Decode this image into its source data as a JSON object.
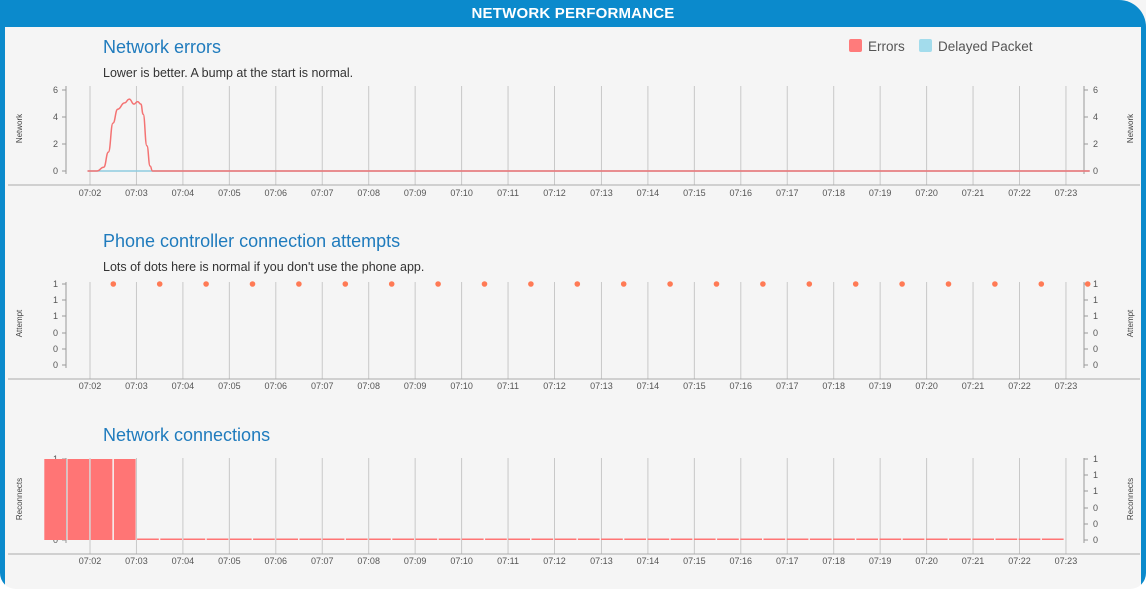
{
  "header": {
    "title": "NETWORK PERFORMANCE"
  },
  "legend": [
    {
      "label": "Errors",
      "color": "#ff7b7b"
    },
    {
      "label": "Delayed Packet",
      "color": "#a3dcec"
    }
  ],
  "colors": {
    "accent": "#0b8acc",
    "title": "#1f7bbd",
    "errors": "#f47373",
    "delayed": "#8fcbe0",
    "attempts": "#ff7a55",
    "reconnects": "#ff7575",
    "grid": "#c8c8c8"
  },
  "chart_data": [
    {
      "type": "line",
      "title": "Network errors",
      "subtitle": "Lower is better. A bump at the start is normal.",
      "ylabel_left": "Network",
      "ylabel_right": "Network",
      "x_ticks": [
        "07:02",
        "07:03",
        "07:04",
        "07:05",
        "07:06",
        "07:07",
        "07:08",
        "07:09",
        "07:10",
        "07:11",
        "07:12",
        "07:13",
        "07:14",
        "07:15",
        "07:16",
        "07:17",
        "07:18",
        "07:19",
        "07:20",
        "07:21",
        "07:22",
        "07:23"
      ],
      "y_ticks": [
        "0",
        "2",
        "4",
        "6"
      ],
      "ylim": [
        0,
        6.5
      ],
      "series": [
        {
          "name": "Errors",
          "x": [
            0,
            0.2,
            0.35,
            0.45,
            0.55,
            0.65,
            0.8,
            0.9,
            1.0,
            1.08,
            1.15,
            1.2,
            1.28,
            1.35,
            1.4,
            1.5,
            21.6
          ],
          "y": [
            0,
            0,
            0.3,
            1.5,
            3.8,
            4.9,
            5.4,
            5.7,
            5.3,
            5.5,
            5.3,
            4.5,
            2.0,
            0.4,
            0,
            0,
            0
          ]
        },
        {
          "name": "Delayed Packet",
          "x": [
            0,
            21.6
          ],
          "y": [
            0,
            0
          ]
        }
      ]
    },
    {
      "type": "scatter",
      "title": "Phone controller connection attempts",
      "subtitle": "Lots of dots here is normal if you don't use the phone app.",
      "ylabel_left": "Attempt",
      "ylabel_right": "Attempt",
      "x_ticks": [
        "07:02",
        "07:03",
        "07:04",
        "07:05",
        "07:06",
        "07:07",
        "07:08",
        "07:09",
        "07:10",
        "07:11",
        "07:12",
        "07:13",
        "07:14",
        "07:15",
        "07:16",
        "07:17",
        "07:18",
        "07:19",
        "07:20",
        "07:21",
        "07:22",
        "07:23"
      ],
      "y_ticks": [
        "0",
        "0",
        "0",
        "1",
        "1",
        "1"
      ],
      "ylim": [
        0,
        1
      ],
      "series": [
        {
          "name": "Attempts",
          "x": [
            0.5,
            1.5,
            2.5,
            3.5,
            4.5,
            5.5,
            6.5,
            7.5,
            8.5,
            9.5,
            10.5,
            11.5,
            12.5,
            13.5,
            14.5,
            15.5,
            16.5,
            17.5,
            18.5,
            19.5,
            20.5,
            21.5
          ],
          "y": [
            1,
            1,
            1,
            1,
            1,
            1,
            1,
            1,
            1,
            1,
            1,
            1,
            1,
            1,
            1,
            1,
            1,
            1,
            1,
            1,
            1,
            1
          ]
        }
      ]
    },
    {
      "type": "bar",
      "title": "Network connections",
      "ylabel_left": "Reconnects",
      "ylabel_right": "Reconnects",
      "x_ticks": [
        "07:02",
        "07:03",
        "07:04",
        "07:05",
        "07:06",
        "07:07",
        "07:08",
        "07:09",
        "07:10",
        "07:11",
        "07:12",
        "07:13",
        "07:14",
        "07:15",
        "07:16",
        "07:17",
        "07:18",
        "07:19",
        "07:20",
        "07:21",
        "07:22",
        "07:23"
      ],
      "y_ticks": [
        "0",
        "0",
        "0",
        "1",
        "1",
        "1"
      ],
      "ylim": [
        0,
        1
      ],
      "series": [
        {
          "name": "Reconnects",
          "x": [
            -0.5,
            0,
            0.5,
            1,
            1.5,
            2,
            2.5,
            3,
            3.5,
            4,
            4.5,
            5,
            5.5,
            6,
            6.5,
            7,
            7.5,
            8,
            8.5,
            9,
            9.5,
            10,
            10.5,
            11,
            11.5,
            12,
            12.5,
            13,
            13.5,
            14,
            14.5,
            15,
            15.5,
            16,
            16.5,
            17,
            17.5,
            18,
            18.5,
            19,
            19.5,
            20,
            20.5,
            21
          ],
          "values": [
            1,
            1,
            1,
            1,
            0,
            0,
            0,
            0,
            0,
            0,
            0,
            0,
            0,
            0,
            0,
            0,
            0,
            0,
            0,
            0,
            0,
            0,
            0,
            0,
            0,
            0,
            0,
            0,
            0,
            0,
            0,
            0,
            0,
            0,
            0,
            0,
            0,
            0,
            0,
            0,
            0,
            0,
            0,
            0
          ]
        }
      ]
    }
  ]
}
